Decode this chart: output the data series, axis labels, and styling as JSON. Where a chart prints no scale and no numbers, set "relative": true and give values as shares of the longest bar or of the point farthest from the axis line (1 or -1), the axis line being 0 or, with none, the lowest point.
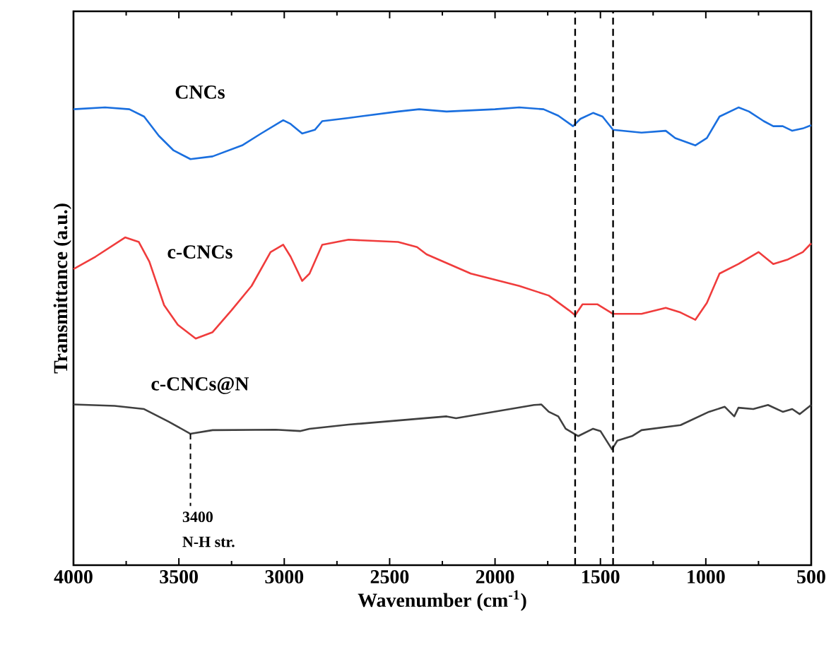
{
  "chart_data": {
    "type": "line",
    "relative": true,
    "xlabel": "Wavenumber (cm$^{-1}$)",
    "ylabel": "Transmittance (a.u.)",
    "xlim": [
      4000,
      500
    ],
    "xticks": [
      4000,
      3500,
      3000,
      2500,
      2000,
      1500,
      1000,
      500
    ],
    "grid": false,
    "legend": false,
    "marker": "none",
    "line_style": "solid",
    "series": [
      {
        "name": "CNCs",
        "color": "#1a6fdf",
        "x": [
          4000,
          3850,
          3735,
          3665,
          3595,
          3525,
          3445,
          3340,
          3200,
          3110,
          3005,
          2970,
          2915,
          2855,
          2820,
          2695,
          2460,
          2360,
          2230,
          2000,
          1885,
          1770,
          1700,
          1630,
          1595,
          1535,
          1490,
          1440,
          1305,
          1190,
          1145,
          1050,
          995,
          935,
          845,
          795,
          725,
          680,
          635,
          590,
          540,
          500
        ],
        "values": [
          0.996,
          1,
          0.996,
          0.98,
          0.938,
          0.906,
          0.887,
          0.893,
          0.917,
          0.943,
          0.972,
          0.964,
          0.943,
          0.951,
          0.97,
          0.977,
          0.991,
          0.996,
          0.991,
          0.996,
          1,
          0.996,
          0.982,
          0.959,
          0.975,
          0.988,
          0.98,
          0.951,
          0.945,
          0.949,
          0.933,
          0.917,
          0.933,
          0.98,
          1,
          0.991,
          0.97,
          0.959,
          0.959,
          0.949,
          0.954,
          0.961
        ]
      },
      {
        "name": "c-CNCs",
        "color": "#f03c3c",
        "x": [
          4000,
          3895,
          3755,
          3690,
          3640,
          3570,
          3505,
          3420,
          3340,
          3250,
          3155,
          3065,
          3005,
          2970,
          2915,
          2880,
          2820,
          2695,
          2460,
          2370,
          2325,
          2115,
          1885,
          1745,
          1650,
          1620,
          1585,
          1515,
          1440,
          1305,
          1190,
          1120,
          1050,
          995,
          935,
          845,
          750,
          680,
          610,
          540,
          500
        ],
        "values": [
          0.647,
          0.674,
          0.716,
          0.706,
          0.663,
          0.568,
          0.525,
          0.495,
          0.509,
          0.557,
          0.61,
          0.684,
          0.7,
          0.674,
          0.621,
          0.637,
          0.7,
          0.711,
          0.706,
          0.695,
          0.679,
          0.637,
          0.61,
          0.589,
          0.557,
          0.546,
          0.57,
          0.57,
          0.549,
          0.549,
          0.562,
          0.552,
          0.536,
          0.573,
          0.637,
          0.658,
          0.684,
          0.658,
          0.668,
          0.684,
          0.703
        ]
      },
      {
        "name": "c-CNCs@N",
        "color": "#404040",
        "x": [
          4000,
          3805,
          3665,
          3550,
          3445,
          3340,
          3040,
          2925,
          2880,
          2695,
          2230,
          2185,
          1815,
          1780,
          1745,
          1700,
          1665,
          1605,
          1535,
          1500,
          1445,
          1420,
          1350,
          1305,
          1120,
          985,
          910,
          865,
          845,
          775,
          705,
          635,
          590,
          555,
          500
        ],
        "values": [
          0.351,
          0.348,
          0.341,
          0.314,
          0.287,
          0.295,
          0.296,
          0.293,
          0.298,
          0.307,
          0.325,
          0.321,
          0.35,
          0.351,
          0.335,
          0.325,
          0.298,
          0.282,
          0.298,
          0.293,
          0.253,
          0.272,
          0.282,
          0.295,
          0.306,
          0.335,
          0.346,
          0.325,
          0.344,
          0.341,
          0.35,
          0.335,
          0.341,
          0.33,
          0.35
        ]
      }
    ],
    "ref_lines": [
      {
        "axis": "x",
        "value": 1620,
        "color": "#000000",
        "line_style": "dashed"
      },
      {
        "axis": "x",
        "value": 1440,
        "color": "#000000",
        "line_style": "dashed"
      }
    ],
    "annotations": [
      {
        "text": "3400",
        "x": 3445,
        "y": 0.287
      },
      "N-H str."
    ]
  }
}
